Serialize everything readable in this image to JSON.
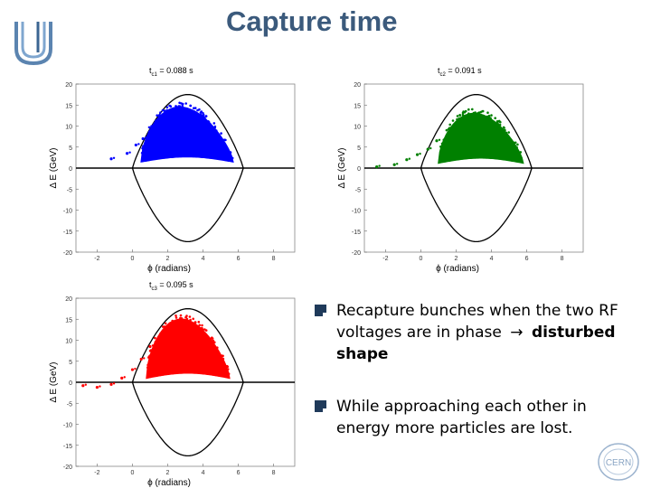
{
  "slide": {
    "title": "Capture time",
    "bullet1_text": "Recapture bunches when the two RF voltages are in phase",
    "bullet1_arrow": "→",
    "bullet1_bold": "disturbed shape",
    "bullet2_text": "While approaching each other in energy more particles are lost.",
    "cern_label": "CERN"
  },
  "chart_data": [
    {
      "type": "scatter",
      "title_main": "t",
      "title_sub": "c1",
      "title_value": "= 0.088 s",
      "xlabel": "ϕ (radians)",
      "ylabel": "Δ E (GeV)",
      "xlim": [
        -3.2,
        9.2
      ],
      "ylim": [
        -20,
        20
      ],
      "xticks": [
        -2,
        0,
        2,
        4,
        6,
        8
      ],
      "yticks": [
        20,
        15,
        10,
        5,
        0,
        -5,
        -10,
        -15,
        -20
      ],
      "color": "#0000ff",
      "separatrix": {
        "x_start": 0,
        "x_end": 6.283,
        "height": 17.5
      },
      "cloud": {
        "x_min": 0.5,
        "x_max": 5.7,
        "peak_x": 3.3,
        "peak_y": 14.5,
        "bottom_y": 1.5
      },
      "tail_points": [
        [
          -1.2,
          2.2
        ],
        [
          -0.3,
          3.5
        ],
        [
          0.2,
          5.5
        ],
        [
          0.6,
          7.0
        ]
      ]
    },
    {
      "type": "scatter",
      "title_main": "t",
      "title_sub": "c2",
      "title_value": "= 0.091 s",
      "xlabel": "ϕ (radians)",
      "ylabel": "Δ E (GeV)",
      "xlim": [
        -3.2,
        9.2
      ],
      "ylim": [
        -20,
        20
      ],
      "xticks": [
        -2,
        0,
        2,
        4,
        6,
        8
      ],
      "yticks": [
        20,
        15,
        10,
        5,
        0,
        -5,
        -10,
        -15,
        -20
      ],
      "color": "#008000",
      "separatrix": {
        "x_start": 0,
        "x_end": 6.283,
        "height": 17.5
      },
      "cloud": {
        "x_min": 1.0,
        "x_max": 5.8,
        "peak_x": 3.5,
        "peak_y": 13.0,
        "bottom_y": 1.2
      },
      "tail_points": [
        [
          -2.5,
          0.3
        ],
        [
          -1.5,
          0.8
        ],
        [
          -0.8,
          2.0
        ],
        [
          -0.2,
          3.2
        ],
        [
          0.4,
          4.5
        ],
        [
          0.9,
          6.5
        ]
      ]
    },
    {
      "type": "scatter",
      "title_main": "t",
      "title_sub": "c3",
      "title_value": "= 0.095 s",
      "xlabel": "ϕ (radians)",
      "ylabel": "Δ E (GeV)",
      "xlim": [
        -3.2,
        9.2
      ],
      "ylim": [
        -20,
        20
      ],
      "xticks": [
        -2,
        0,
        2,
        4,
        6,
        8
      ],
      "yticks": [
        20,
        15,
        10,
        5,
        0,
        -5,
        -10,
        -15,
        -20
      ],
      "color": "#ff0000",
      "separatrix": {
        "x_start": 0,
        "x_end": 6.283,
        "height": 17.5
      },
      "cloud": {
        "x_min": 0.8,
        "x_max": 5.5,
        "peak_x": 3.0,
        "peak_y": 15.0,
        "bottom_y": 1.0
      },
      "tail_points": [
        [
          -2.8,
          -0.8
        ],
        [
          -2.0,
          -1.2
        ],
        [
          -1.2,
          -0.5
        ],
        [
          -0.6,
          1.0
        ],
        [
          0.0,
          3.0
        ],
        [
          0.5,
          5.5
        ],
        [
          1.0,
          8.5
        ],
        [
          1.6,
          11.5
        ]
      ]
    }
  ]
}
